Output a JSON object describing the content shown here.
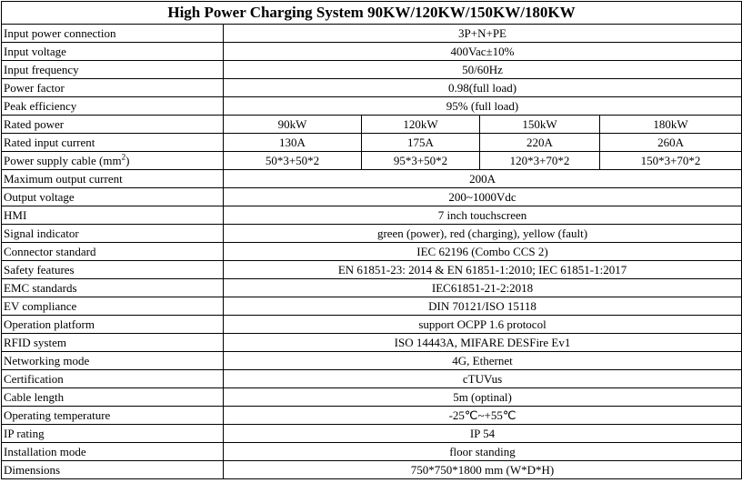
{
  "title": "High Power Charging System 90KW/120KW/150KW/180KW",
  "table": {
    "rows": [
      {
        "label": "Input power connection",
        "values": [
          "3P+N+PE"
        ]
      },
      {
        "label": "Input voltage",
        "values": [
          "400Vac±10%"
        ]
      },
      {
        "label": "Input frequency",
        "values": [
          "50/60Hz"
        ]
      },
      {
        "label": "Power factor",
        "values": [
          "0.98(full load)"
        ]
      },
      {
        "label": "Peak efficiency",
        "values": [
          "95% (full load)"
        ]
      },
      {
        "label": "Rated power",
        "values": [
          "90kW",
          "120kW",
          "150kW",
          "180kW"
        ]
      },
      {
        "label": "Rated input current",
        "values": [
          "130A",
          "175A",
          "220A",
          "260A"
        ]
      },
      {
        "label": "Power supply cable (mm",
        "label_sup": "2",
        "label_after": ")",
        "values": [
          "50*3+50*2",
          "95*3+50*2",
          "120*3+70*2",
          "150*3+70*2"
        ]
      },
      {
        "label": "Maximum output current",
        "values": [
          "200A"
        ]
      },
      {
        "label": "Output voltage",
        "values": [
          "200~1000Vdc"
        ]
      },
      {
        "label": "HMI",
        "values": [
          "7 inch touchscreen"
        ]
      },
      {
        "label": "Signal indicator",
        "values": [
          "green (power), red (charging), yellow (fault)"
        ]
      },
      {
        "label": "Connector standard",
        "values": [
          "IEC 62196 (Combo CCS 2)"
        ]
      },
      {
        "label": "Safety features",
        "values": [
          "EN 61851-23: 2014 & EN 61851-1:2010; IEC 61851-1:2017"
        ]
      },
      {
        "label": "EMC standards",
        "values": [
          "IEC61851-21-2:2018"
        ]
      },
      {
        "label": "EV compliance",
        "values": [
          "DIN 70121/ISO 15118"
        ]
      },
      {
        "label": "Operation platform",
        "values": [
          "support OCPP 1.6 protocol"
        ]
      },
      {
        "label": "RFID system",
        "values": [
          "ISO 14443A, MIFARE DESFire Ev1"
        ]
      },
      {
        "label": "Networking mode",
        "values": [
          "4G, Ethernet"
        ]
      },
      {
        "label": "Certification",
        "values": [
          "cTUVus"
        ]
      },
      {
        "label": "Cable length",
        "values": [
          "5m (optinal)"
        ]
      },
      {
        "label": "Operating temperature",
        "values": [
          "-25℃~+55℃"
        ]
      },
      {
        "label": "IP rating",
        "values": [
          "IP 54"
        ]
      },
      {
        "label": "Installation mode",
        "values": [
          "floor standing"
        ]
      },
      {
        "label": "Dimensions",
        "values": [
          "750*750*1800 mm (W*D*H)"
        ]
      }
    ]
  }
}
